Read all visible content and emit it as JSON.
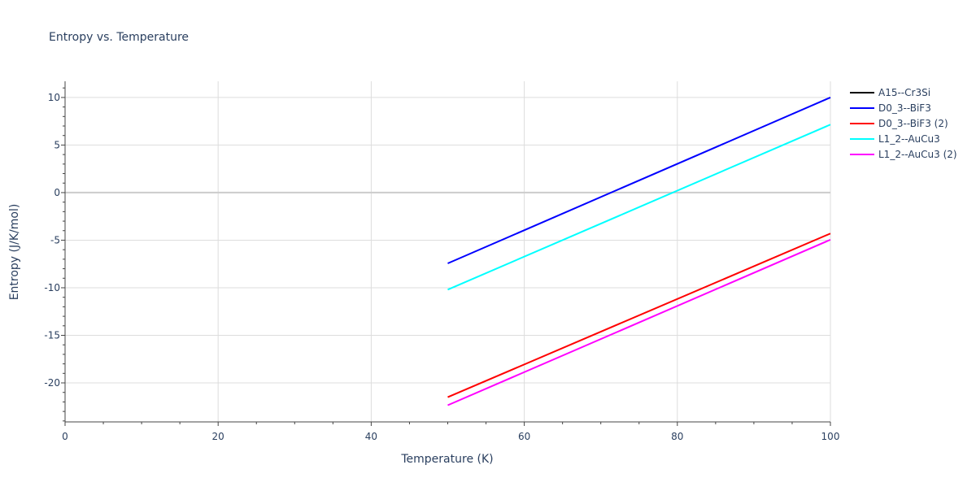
{
  "chart_data": {
    "type": "line",
    "title": "Entropy vs. Temperature",
    "xlabel": "Temperature (K)",
    "ylabel": "Entropy (J/K/mol)",
    "xlim": [
      0,
      100
    ],
    "ylim": [
      -24.1,
      11.7
    ],
    "xticks": [
      0,
      20,
      40,
      60,
      80,
      100
    ],
    "yticks": [
      -20,
      -15,
      -10,
      -5,
      0,
      5,
      10
    ],
    "grid": true,
    "legend_position": "top-right",
    "series": [
      {
        "name": "A15--Cr3Si",
        "color": "#000000",
        "x": [],
        "y": []
      },
      {
        "name": "D0_3--BiF3",
        "color": "#0000ff",
        "x": [
          50,
          100
        ],
        "y": [
          -7.44,
          10.0
        ]
      },
      {
        "name": "D0_3--BiF3 (2)",
        "color": "#ff0000",
        "x": [
          50,
          100
        ],
        "y": [
          -21.5,
          -4.3
        ]
      },
      {
        "name": "L1_2--AuCu3",
        "color": "#00ffff",
        "x": [
          50,
          100
        ],
        "y": [
          -10.2,
          7.15
        ]
      },
      {
        "name": "L1_2--AuCu3 (2)",
        "color": "#ff00ff",
        "x": [
          50,
          100
        ],
        "y": [
          -22.35,
          -4.95
        ]
      }
    ]
  }
}
